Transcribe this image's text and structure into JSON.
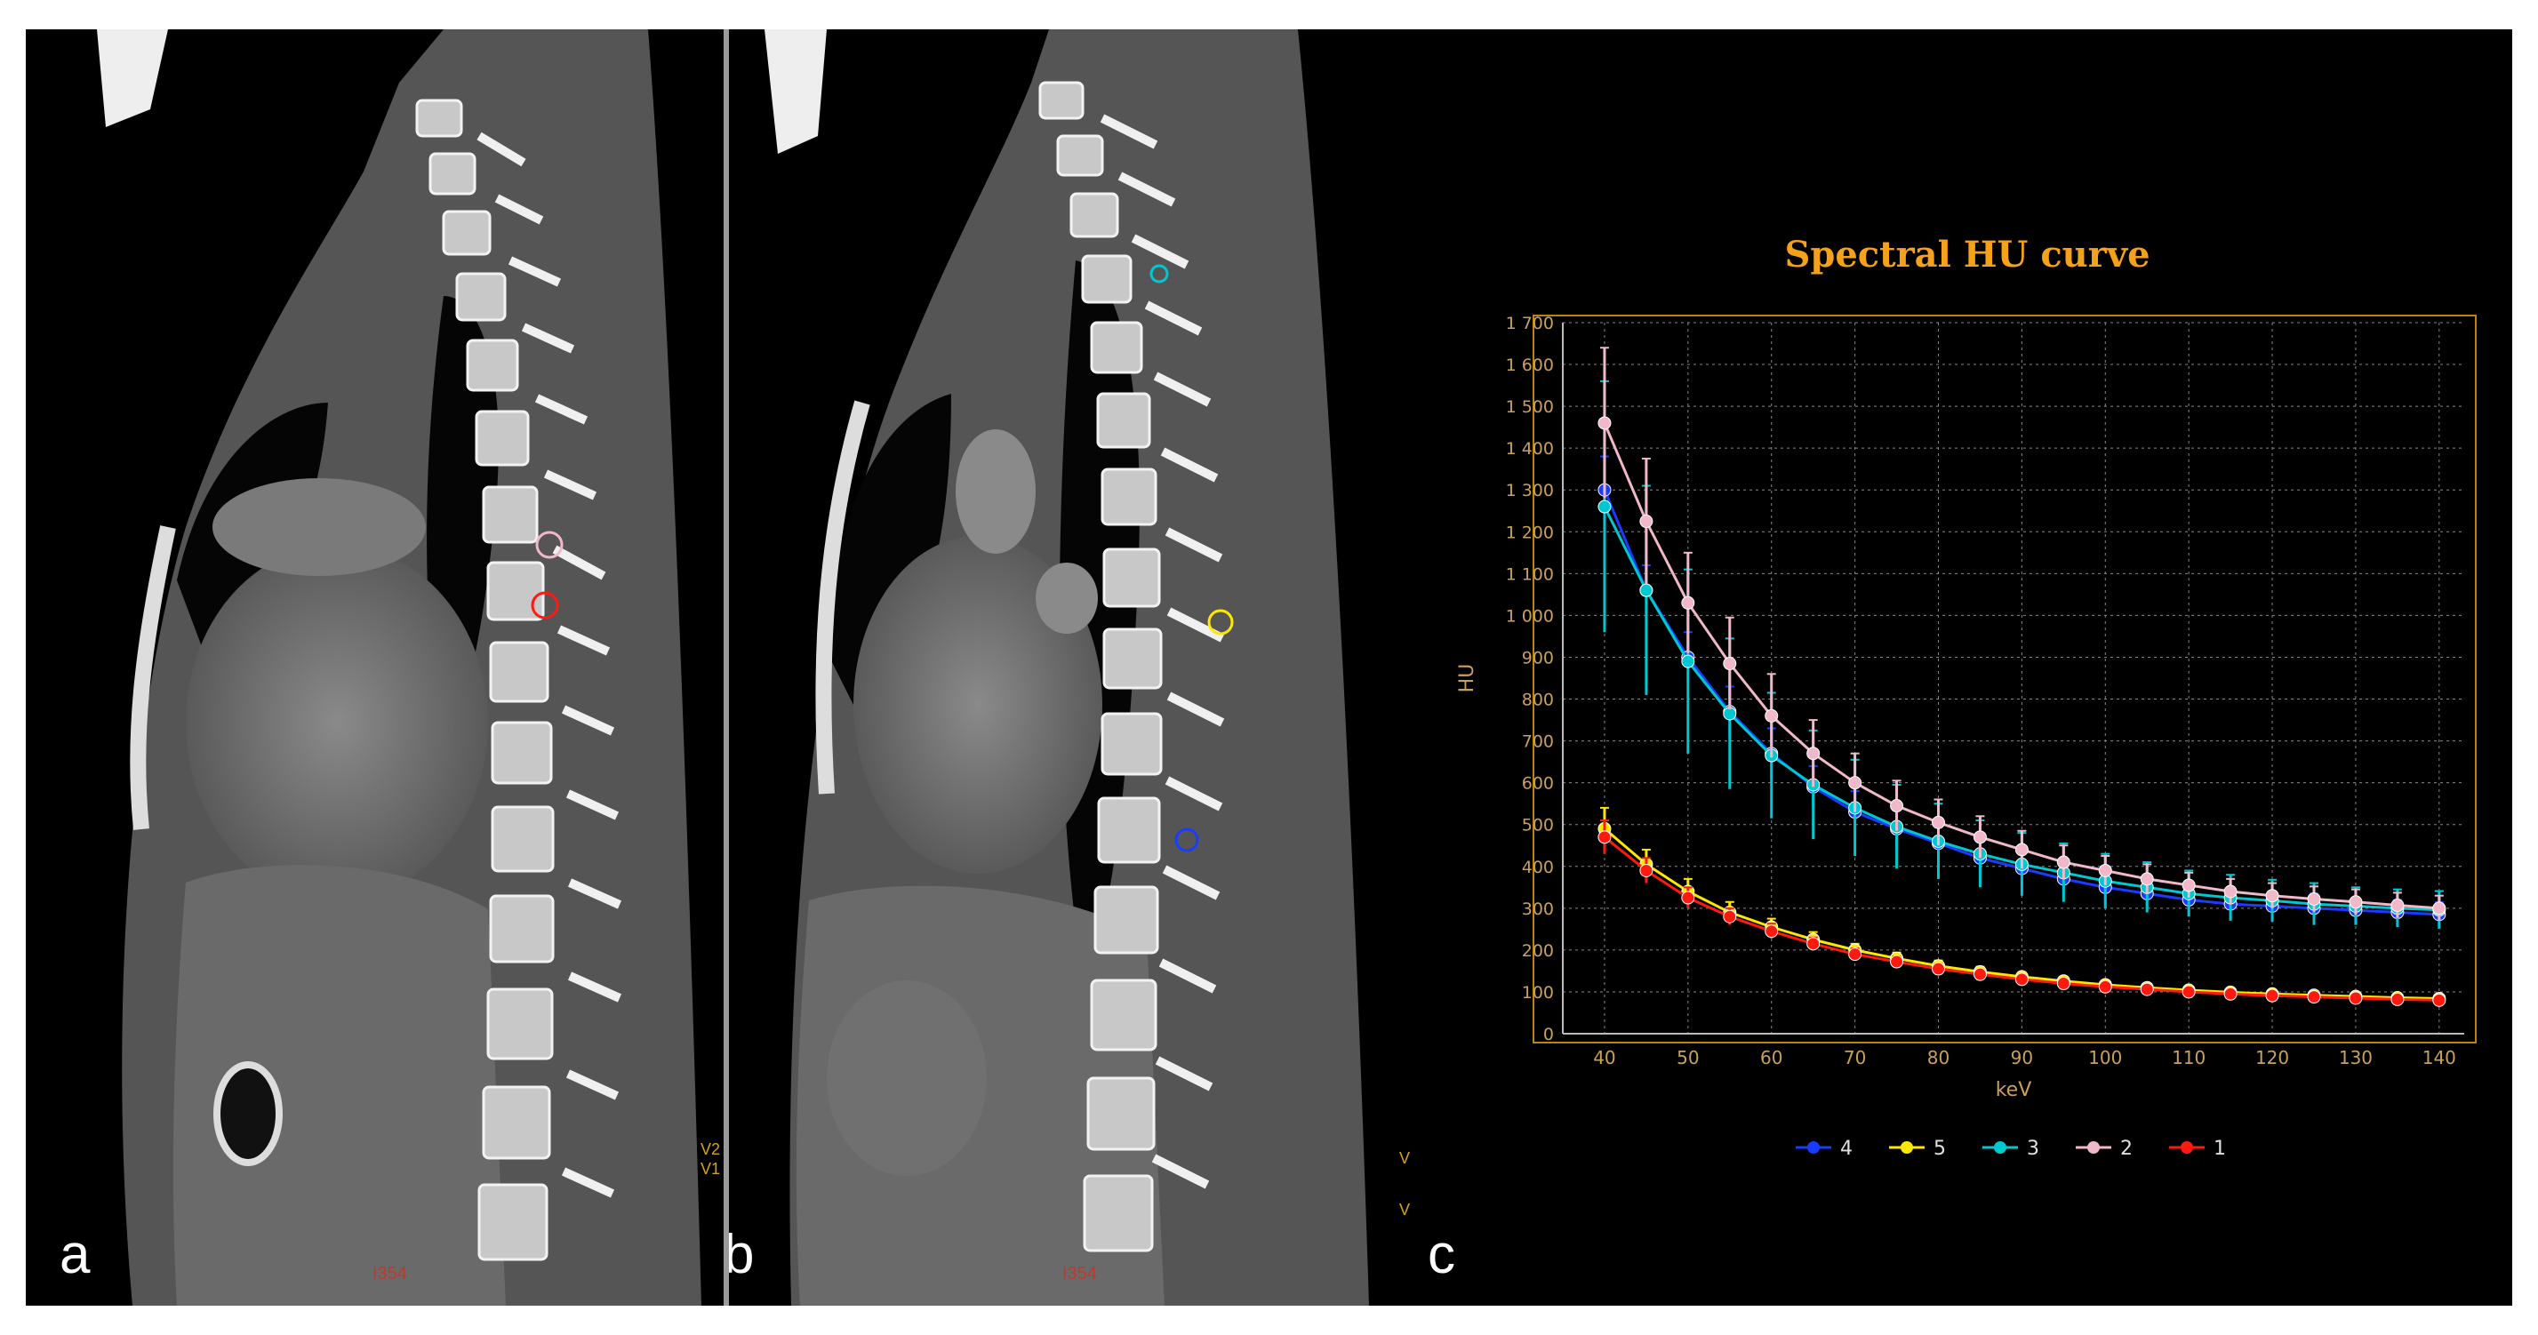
{
  "panels": {
    "a": {
      "letter": "a",
      "bottom_label": "I354",
      "side_tags": [
        "V2",
        "V1"
      ]
    },
    "b": {
      "letter": "b",
      "bottom_label": "I354",
      "side_tags": [
        "V",
        "V"
      ]
    },
    "c": {
      "letter": "c"
    }
  },
  "colors": {
    "background": "#000000",
    "frame": "#b8860b",
    "title": "#f5a21a",
    "axis_text": "#c8a060",
    "series": {
      "4": "#1a3cff",
      "5": "#ffe800",
      "3": "#00c8d0",
      "2": "#f0b8c8",
      "1": "#ff1a10"
    }
  },
  "chart_data": {
    "type": "line",
    "title": "Spectral HU curve",
    "xlabel": "keV",
    "ylabel": "HU",
    "xlim": [
      35,
      143
    ],
    "ylim": [
      0,
      1700
    ],
    "xticks": [
      40,
      50,
      60,
      70,
      80,
      90,
      100,
      110,
      120,
      130,
      140
    ],
    "yticks": [
      0,
      100,
      200,
      300,
      400,
      500,
      600,
      700,
      800,
      900,
      1000,
      1100,
      1200,
      1300,
      1400,
      1500,
      1600,
      1700
    ],
    "ytick_labels": [
      "0",
      "100",
      "200",
      "300",
      "400",
      "500",
      "600",
      "700",
      "800",
      "900",
      "1 000",
      "1 100",
      "1 200",
      "1 300",
      "1 400",
      "1 500",
      "1 600",
      "1 700"
    ],
    "grid": true,
    "legend_position": "bottom",
    "x": [
      40,
      45,
      50,
      55,
      60,
      65,
      70,
      75,
      80,
      85,
      90,
      95,
      100,
      105,
      110,
      115,
      120,
      125,
      130,
      135,
      140
    ],
    "series": [
      {
        "name": "4",
        "color": "#1a3cff",
        "values": [
          1300,
          1060,
          900,
          770,
          670,
          590,
          530,
          490,
          455,
          420,
          395,
          370,
          350,
          335,
          320,
          310,
          305,
          300,
          295,
          290,
          285
        ],
        "errors": [
          80,
          60,
          60,
          60,
          60,
          50,
          50,
          50,
          45,
          45,
          40,
          40,
          40,
          35,
          35,
          35,
          35,
          35,
          30,
          30,
          30
        ]
      },
      {
        "name": "5",
        "color": "#ffe800",
        "values": [
          490,
          405,
          340,
          290,
          255,
          225,
          200,
          180,
          162,
          148,
          136,
          126,
          117,
          110,
          104,
          99,
          95,
          92,
          89,
          86,
          84
        ],
        "errors": [
          50,
          35,
          30,
          25,
          20,
          18,
          15,
          14,
          13,
          12,
          11,
          10,
          10,
          9,
          9,
          8,
          8,
          8,
          8,
          8,
          8
        ]
      },
      {
        "name": "3",
        "color": "#00c8d0",
        "values": [
          1260,
          1060,
          890,
          765,
          665,
          595,
          540,
          495,
          460,
          430,
          405,
          385,
          365,
          350,
          335,
          325,
          318,
          310,
          305,
          300,
          296
        ],
        "errors": [
          300,
          250,
          220,
          180,
          150,
          130,
          115,
          100,
          90,
          80,
          75,
          70,
          65,
          60,
          55,
          55,
          50,
          50,
          45,
          45,
          45
        ]
      },
      {
        "name": "2",
        "color": "#f0b8c8",
        "values": [
          1460,
          1225,
          1030,
          885,
          760,
          670,
          600,
          545,
          505,
          470,
          440,
          410,
          390,
          370,
          355,
          340,
          330,
          322,
          315,
          307,
          300
        ],
        "errors": [
          180,
          150,
          120,
          110,
          100,
          80,
          70,
          60,
          55,
          50,
          45,
          40,
          35,
          35,
          30,
          30,
          30,
          30,
          30,
          30,
          30
        ]
      },
      {
        "name": "1",
        "color": "#ff1a10",
        "values": [
          470,
          390,
          325,
          280,
          245,
          215,
          190,
          172,
          155,
          142,
          130,
          120,
          112,
          106,
          100,
          95,
          91,
          88,
          85,
          82,
          80
        ],
        "errors": [
          40,
          30,
          25,
          20,
          18,
          15,
          14,
          13,
          12,
          11,
          10,
          10,
          9,
          9,
          8,
          8,
          8,
          8,
          8,
          8,
          8
        ]
      }
    ],
    "legend_order": [
      "4",
      "5",
      "3",
      "2",
      "1"
    ]
  }
}
